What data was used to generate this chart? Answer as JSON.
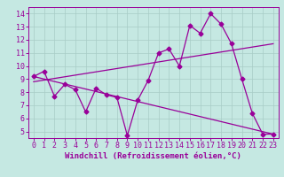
{
  "bg_color": "#c5e8e2",
  "line_color": "#990099",
  "grid_color": "#a8ccc6",
  "x_min": -0.5,
  "x_max": 23.5,
  "y_min": 4.5,
  "y_max": 14.5,
  "yticks": [
    5,
    6,
    7,
    8,
    9,
    10,
    11,
    12,
    13,
    14
  ],
  "xticks": [
    0,
    1,
    2,
    3,
    4,
    5,
    6,
    7,
    8,
    9,
    10,
    11,
    12,
    13,
    14,
    15,
    16,
    17,
    18,
    19,
    20,
    21,
    22,
    23
  ],
  "series1_x": [
    0,
    1,
    2,
    3,
    4,
    5,
    6,
    7,
    8,
    9,
    10,
    11,
    12,
    13,
    14,
    15,
    16,
    17,
    18,
    19,
    20,
    21,
    22,
    23
  ],
  "series1_y": [
    9.2,
    9.6,
    7.7,
    8.6,
    8.2,
    6.5,
    8.3,
    7.8,
    7.6,
    4.7,
    7.4,
    8.9,
    11.0,
    11.3,
    10.0,
    13.1,
    12.5,
    14.0,
    13.2,
    11.7,
    9.0,
    6.4,
    4.8,
    4.8
  ],
  "series2_x": [
    0,
    23
  ],
  "series2_y": [
    8.8,
    11.7
  ],
  "series3_x": [
    0,
    23
  ],
  "series3_y": [
    9.2,
    4.8
  ],
  "xlabel": "Windchill (Refroidissement éolien,°C)",
  "marker": "D",
  "markersize": 2.5,
  "linewidth": 0.9,
  "tick_fontsize": 6.0,
  "xlabel_fontsize": 6.5
}
